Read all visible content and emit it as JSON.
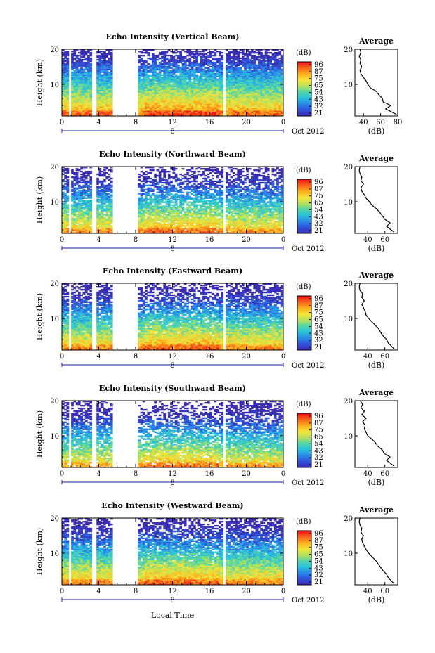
{
  "xlabel": "Local Time",
  "date_label": "Oct 2012",
  "day_label": "8",
  "colorbar": {
    "unit": "(dB)",
    "ticks": [
      "96",
      "87",
      "75",
      "65",
      "54",
      "43",
      "32",
      "21"
    ],
    "stops": [
      "#f21818",
      "#f86a1c",
      "#fbb21f",
      "#f4e43a",
      "#b7e25a",
      "#55d4a5",
      "#2bc3d9",
      "#2a8fe8",
      "#2f55db",
      "#3b2fb4"
    ]
  },
  "chart_data": [
    {
      "type": "heatmap",
      "title": "Echo Intensity (Vertical Beam)",
      "ylabel": "Height (km)",
      "x_ticks": [
        "0",
        "4",
        "8",
        "12",
        "16",
        "20",
        "0"
      ],
      "y_ticks": [
        "20",
        "10"
      ],
      "ylim": [
        1,
        20
      ],
      "xlim": [
        0,
        24
      ],
      "data_gaps_hours": [
        [
          0.8,
          1.1
        ],
        [
          3.2,
          3.7
        ],
        [
          5.6,
          8.2
        ],
        [
          17.4,
          17.8
        ]
      ],
      "average_profile": {
        "title": "Average",
        "xlabel": "(dB)",
        "x_ticks": [
          "40",
          "60",
          "80"
        ],
        "y_ticks": [
          "20",
          "10"
        ],
        "xlim": [
          30,
          80
        ],
        "height_km": [
          1.5,
          3,
          4,
          5,
          6,
          7,
          8,
          9,
          10,
          11,
          12,
          13,
          14,
          15,
          16,
          17,
          18,
          19,
          20
        ],
        "db": [
          78,
          66,
          72,
          63,
          62,
          58,
          55,
          48,
          45,
          43,
          40,
          37,
          36,
          38,
          36,
          37,
          35,
          37,
          36
        ]
      }
    },
    {
      "type": "heatmap",
      "title": "Echo Intensity (Northward Beam)",
      "ylabel": "Height (km)",
      "x_ticks": [
        "0",
        "4",
        "8",
        "12",
        "16",
        "20",
        "0"
      ],
      "y_ticks": [
        "20",
        "10"
      ],
      "ylim": [
        1,
        20
      ],
      "xlim": [
        0,
        24
      ],
      "data_gaps_hours": [
        [
          0.8,
          1.1
        ],
        [
          3.2,
          3.7
        ],
        [
          5.6,
          8.2
        ],
        [
          17.4,
          17.8
        ]
      ],
      "average_profile": {
        "title": "Average",
        "xlabel": "(dB)",
        "x_ticks": [
          "40",
          "60"
        ],
        "y_ticks": [
          "20",
          "10"
        ],
        "xlim": [
          25,
          75
        ],
        "height_km": [
          1.5,
          3,
          4,
          5,
          6,
          7,
          8,
          9,
          10,
          11,
          12,
          13,
          14,
          15,
          16,
          17,
          18,
          19,
          20
        ],
        "db": [
          70,
          62,
          66,
          60,
          57,
          54,
          50,
          45,
          42,
          38,
          36,
          33,
          32,
          35,
          32,
          33,
          31,
          30,
          31
        ]
      }
    },
    {
      "type": "heatmap",
      "title": "Echo Intensity (Eastward Beam)",
      "ylabel": "Height (km)",
      "x_ticks": [
        "0",
        "4",
        "8",
        "12",
        "16",
        "20",
        "0"
      ],
      "y_ticks": [
        "20",
        "10"
      ],
      "ylim": [
        1,
        20
      ],
      "xlim": [
        0,
        24
      ],
      "data_gaps_hours": [
        [
          0.8,
          1.1
        ],
        [
          3.2,
          3.7
        ],
        [
          5.6,
          8.2
        ],
        [
          17.4,
          17.8
        ]
      ],
      "average_profile": {
        "title": "Average",
        "xlabel": "(dB)",
        "x_ticks": [
          "40",
          "60"
        ],
        "y_ticks": [
          "20",
          "10"
        ],
        "xlim": [
          25,
          75
        ],
        "height_km": [
          1.5,
          3,
          4,
          5,
          6,
          7,
          8,
          9,
          10,
          11,
          12,
          13,
          14,
          15,
          16,
          17,
          18,
          19,
          20
        ],
        "db": [
          70,
          64,
          62,
          58,
          55,
          53,
          49,
          45,
          41,
          38,
          37,
          35,
          33,
          36,
          33,
          34,
          31,
          30,
          31
        ]
      }
    },
    {
      "type": "heatmap",
      "title": "Echo Intensity (Southward Beam)",
      "ylabel": "Height (km)",
      "x_ticks": [
        "0",
        "4",
        "8",
        "12",
        "16",
        "20",
        "0"
      ],
      "y_ticks": [
        "20",
        "10"
      ],
      "ylim": [
        1,
        20
      ],
      "xlim": [
        0,
        24
      ],
      "data_gaps_hours": [
        [
          0.8,
          1.1
        ],
        [
          3.2,
          3.7
        ],
        [
          5.6,
          8.2
        ],
        [
          17.4,
          17.8
        ]
      ],
      "average_profile": {
        "title": "Average",
        "xlabel": "(dB)",
        "x_ticks": [
          "40",
          "60"
        ],
        "y_ticks": [
          "20",
          "10"
        ],
        "xlim": [
          25,
          75
        ],
        "height_km": [
          1.5,
          3,
          4,
          5,
          6,
          7,
          8,
          9,
          10,
          11,
          12,
          13,
          14,
          15,
          16,
          17,
          18,
          19,
          20
        ],
        "db": [
          70,
          62,
          66,
          59,
          57,
          52,
          49,
          45,
          40,
          38,
          36,
          37,
          34,
          38,
          33,
          36,
          32,
          34,
          31
        ]
      }
    },
    {
      "type": "heatmap",
      "title": "Echo Intensity (Westward Beam)",
      "ylabel": "Height (km)",
      "x_ticks": [
        "0",
        "4",
        "8",
        "12",
        "16",
        "20",
        "0"
      ],
      "y_ticks": [
        "20",
        "10"
      ],
      "ylim": [
        1,
        20
      ],
      "xlim": [
        0,
        24
      ],
      "data_gaps_hours": [
        [
          0.8,
          1.1
        ],
        [
          3.2,
          3.7
        ],
        [
          5.6,
          8.2
        ],
        [
          17.4,
          17.8
        ]
      ],
      "average_profile": {
        "title": "Average",
        "xlabel": "(dB)",
        "x_ticks": [
          "40",
          "60"
        ],
        "y_ticks": [
          "20",
          "10"
        ],
        "xlim": [
          25,
          75
        ],
        "height_km": [
          1.5,
          3,
          4,
          5,
          6,
          7,
          8,
          9,
          10,
          11,
          12,
          13,
          14,
          15,
          16,
          17,
          18,
          19,
          20
        ],
        "db": [
          70,
          64,
          62,
          58,
          55,
          52,
          49,
          45,
          41,
          38,
          36,
          34,
          33,
          35,
          32,
          33,
          31,
          30,
          31
        ]
      }
    }
  ]
}
